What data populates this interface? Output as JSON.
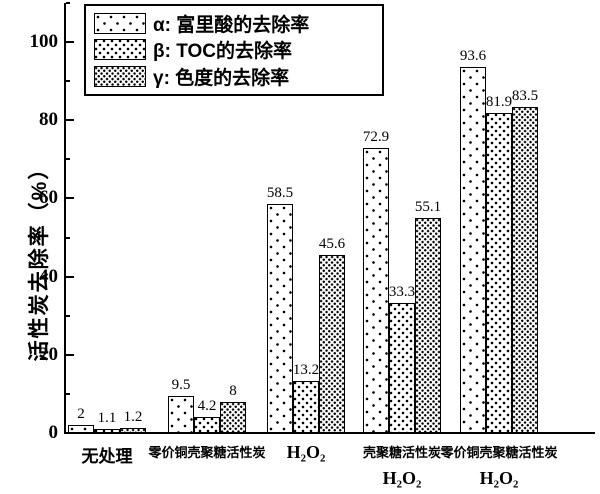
{
  "colors": {
    "ink": "#000000",
    "background": "#ffffff"
  },
  "chart_data": {
    "type": "bar",
    "title": "",
    "xlabel": "",
    "ylabel": "活性炭去除率（%）",
    "ylim": [
      0,
      110
    ],
    "yticks": [
      0,
      20,
      40,
      60,
      80,
      100
    ],
    "yticks_minor": [
      10,
      30,
      50,
      70,
      90,
      110
    ],
    "grid": false,
    "legend_position": "top-left",
    "categories": [
      {
        "lines": [
          "无处理"
        ]
      },
      {
        "lines": [
          "零价铜壳聚糖活性炭"
        ]
      },
      {
        "lines": [
          "H₂O₂"
        ]
      },
      {
        "lines": [
          "壳聚糖活性炭",
          "H₂O₂"
        ]
      },
      {
        "lines": [
          "零价铜壳聚糖活性炭",
          "H₂O₂"
        ]
      }
    ],
    "series": [
      {
        "symbol": "α",
        "name": "富里酸的去除率",
        "legend_label": "α: 富里酸的去除率",
        "pattern": "sparse-dots",
        "values": [
          2,
          9.5,
          58.5,
          72.9,
          93.6
        ],
        "value_labels": [
          "2",
          "9.5",
          "58.5",
          "72.9",
          "93.6"
        ]
      },
      {
        "symbol": "β",
        "name": "TOC的去除率",
        "legend_label": "β: TOC的去除率",
        "pattern": "medium-dots",
        "values": [
          1.1,
          4.2,
          13.2,
          33.3,
          81.9
        ],
        "value_labels": [
          "1.1",
          "4.2",
          "13.2",
          "33.3",
          "81.9"
        ]
      },
      {
        "symbol": "γ",
        "name": "色度的去除率",
        "legend_label": "γ: 色度的去除率",
        "pattern": "dense-dots",
        "values": [
          1.2,
          8,
          45.6,
          55.1,
          83.5
        ],
        "value_labels": [
          "1.2",
          "8",
          "45.6",
          "55.1",
          "83.5"
        ]
      }
    ]
  }
}
